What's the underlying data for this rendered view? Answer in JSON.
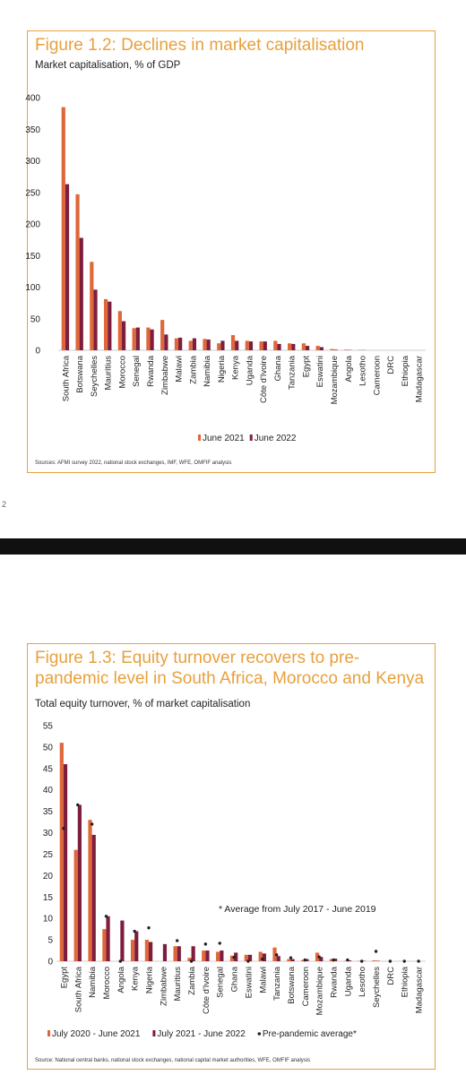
{
  "side_mark": "2",
  "colors": {
    "orange": "#e0673a",
    "maroon": "#7d1e3e",
    "title": "#e8a03c",
    "dot": "#222222"
  },
  "chart_data": [
    {
      "type": "bar",
      "title": "Figure 1.2: Declines in market capitalisation",
      "subtitle": "Market capitalisation, % of GDP",
      "source": "Sources: AFMI survey 2022, national stock exchanges, IMF, WFE, OMFIF analysis",
      "categories": [
        "South Africa",
        "Botswana",
        "Seychelles",
        "Mauritius",
        "Morocco",
        "Senegal",
        "Rwanda",
        "Zimbabwe",
        "Malawi",
        "Zambia",
        "Namibia",
        "Nigeria",
        "Kenya",
        "Uganda",
        "Côte d'Ivoire",
        "Ghana",
        "Tanzania",
        "Egypt",
        "Eswatini",
        "Mozambique",
        "Angola",
        "Lesotho",
        "Cameroon",
        "DRC",
        "Ethiopia",
        "Madagascar"
      ],
      "series": [
        {
          "name": "June 2021",
          "values": [
            385,
            247,
            140,
            81,
            62,
            35,
            36,
            48,
            19,
            15,
            18,
            11,
            24,
            15,
            14,
            15,
            11,
            11,
            7,
            2,
            1,
            0.5,
            0,
            0,
            0,
            0
          ]
        },
        {
          "name": "June 2022",
          "values": [
            263,
            178,
            96,
            77,
            46,
            36,
            33,
            25,
            20,
            19,
            17,
            15,
            15,
            14,
            14,
            10,
            10,
            7,
            5,
            1,
            0.5,
            0.3,
            0,
            0,
            0,
            0
          ]
        }
      ],
      "ylim": [
        0,
        400
      ],
      "yticks": [
        0,
        50,
        100,
        150,
        200,
        250,
        300,
        350,
        400
      ],
      "legend": "bottom"
    },
    {
      "type": "bar",
      "title": "Figure 1.3: Equity turnover recovers to pre-pandemic level in South Africa, Morocco and Kenya",
      "subtitle": "Total equity turnover, % of market capitalisation",
      "source": "Source: National central banks, national stock exchanges, national capital market authorities, WFE, OMFIF analysis",
      "annotation": "* Average from July 2017 - June 2019",
      "categories": [
        "Egypt",
        "South Africa",
        "Namibia",
        "Morocco",
        "Angola",
        "Kenya",
        "Nigeria",
        "Zimbabwe",
        "Mauritius",
        "Zambia",
        "Côte d'Ivoire",
        "Senegal",
        "Ghana",
        "Eswatini",
        "Malawi",
        "Tanzania",
        "Botswana",
        "Cameroon",
        "Mozambique",
        "Rwanda",
        "Uganda",
        "Lesotho",
        "Seychelles",
        "DRC",
        "Ethiopia",
        "Madagascar"
      ],
      "series": [
        {
          "name": "July 2020 - June 2021",
          "values": [
            51,
            26,
            33,
            7.5,
            0,
            5,
            5,
            0,
            3.5,
            0.8,
            2.5,
            2.2,
            1.3,
            1.5,
            2.2,
            3.2,
            0.5,
            0.3,
            2,
            0.5,
            0.1,
            0.1,
            0.2,
            0,
            0,
            0
          ]
        },
        {
          "name": "July 2021 - June 2022",
          "values": [
            46,
            36.5,
            29.5,
            10.5,
            9.5,
            7,
            4.5,
            4,
            3.5,
            3.5,
            2.5,
            2.5,
            2,
            1.5,
            1.8,
            1.2,
            0.5,
            0.5,
            1,
            0.6,
            0.2,
            0.1,
            0.1,
            0,
            0,
            0
          ]
        }
      ],
      "pre_pandemic": {
        "name": "Pre-pandemic average*",
        "values": [
          31,
          36.5,
          32,
          10.5,
          0,
          7,
          7.8,
          null,
          4.8,
          0,
          4,
          4.2,
          0.9,
          0,
          0.5,
          1.5,
          0.8,
          0.3,
          1,
          0.3,
          0.3,
          0,
          2.3,
          0,
          0,
          0
        ]
      },
      "ylim": [
        0,
        55
      ],
      "yticks": [
        0,
        5,
        10,
        15,
        20,
        25,
        30,
        35,
        40,
        45,
        50,
        55
      ],
      "legend": "bottom"
    }
  ]
}
